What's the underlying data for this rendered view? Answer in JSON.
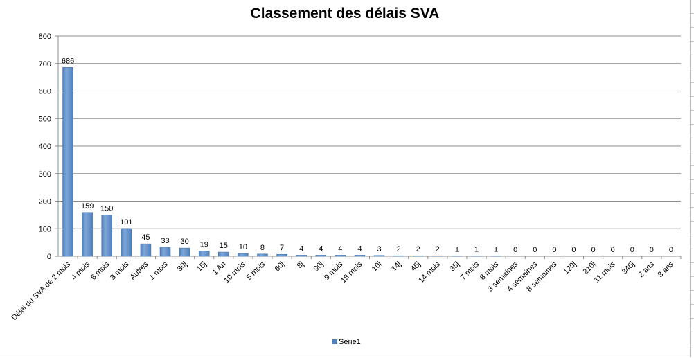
{
  "chart_data": {
    "type": "bar",
    "title": "Classement des délais SVA",
    "categories": [
      "Délai du SVA de 2 mois",
      "4 mois",
      "6 mois",
      "3 mois",
      "Autres",
      "1 mois",
      "30j",
      "15j",
      "1 An",
      "10 mois",
      "5 mois",
      "60j",
      "8j",
      "90j",
      "9 mois",
      "18 mois",
      "10j",
      "14j",
      "45j",
      "14 mois",
      "35j",
      "7 mois",
      "8 mois",
      "3 semaines",
      "4 semaines",
      "8 semaines",
      "120j",
      "210j",
      "11 mois",
      "345j",
      "2 ans",
      "3 ans"
    ],
    "series": [
      {
        "name": "Série1",
        "values": [
          686,
          159,
          150,
          101,
          45,
          33,
          30,
          19,
          15,
          10,
          8,
          7,
          4,
          4,
          4,
          4,
          3,
          2,
          2,
          2,
          1,
          1,
          1,
          0,
          0,
          0,
          0,
          0,
          0,
          0,
          0,
          0
        ]
      }
    ],
    "ylim": [
      0,
      800
    ],
    "yticks": [
      0,
      100,
      200,
      300,
      400,
      500,
      600,
      700,
      800
    ],
    "grid": true,
    "legend": "bottom-center",
    "bar_color": "#4f81bd",
    "bar_highlight": "#7ea6d8"
  }
}
